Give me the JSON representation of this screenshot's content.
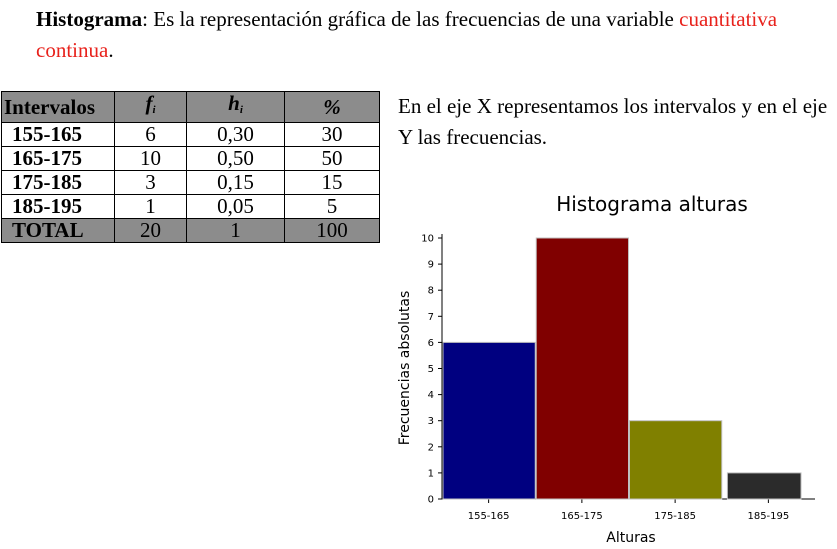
{
  "intro": {
    "term": "Histograma",
    "text": ": Es la representación gráfica de las frecuencias de una variable ",
    "highlight": "cuantitativa continua",
    "end": "."
  },
  "table": {
    "headers": [
      "Intervalos",
      "f",
      "h",
      "%"
    ],
    "header_subscripts": [
      "",
      "i",
      "i",
      ""
    ],
    "rows": [
      [
        "155-165",
        "6",
        "0,30",
        "30"
      ],
      [
        "165-175",
        "10",
        "0,50",
        "50"
      ],
      [
        "175-185",
        "3",
        "0,15",
        "15"
      ],
      [
        "185-195",
        "1",
        "0,05",
        "5"
      ]
    ],
    "total": [
      "TOTAL",
      "20",
      "1",
      "100"
    ]
  },
  "side_text": "En el eje X representamos los intervalos y en el eje Y las frecuencias.",
  "chart_data": {
    "type": "bar",
    "title": "Histograma alturas",
    "xlabel": "Alturas",
    "ylabel": "Frecuencias absolutas",
    "categories": [
      "155-165",
      "165-175",
      "175-185",
      "185-195"
    ],
    "values": [
      6,
      10,
      3,
      1
    ],
    "ylim": [
      0,
      10
    ],
    "yticks": [
      0,
      1,
      2,
      3,
      4,
      5,
      6,
      7,
      8,
      9,
      10
    ],
    "grid": false,
    "colors": [
      "#000080",
      "#800000",
      "#808000",
      "#2b2b2b"
    ]
  }
}
